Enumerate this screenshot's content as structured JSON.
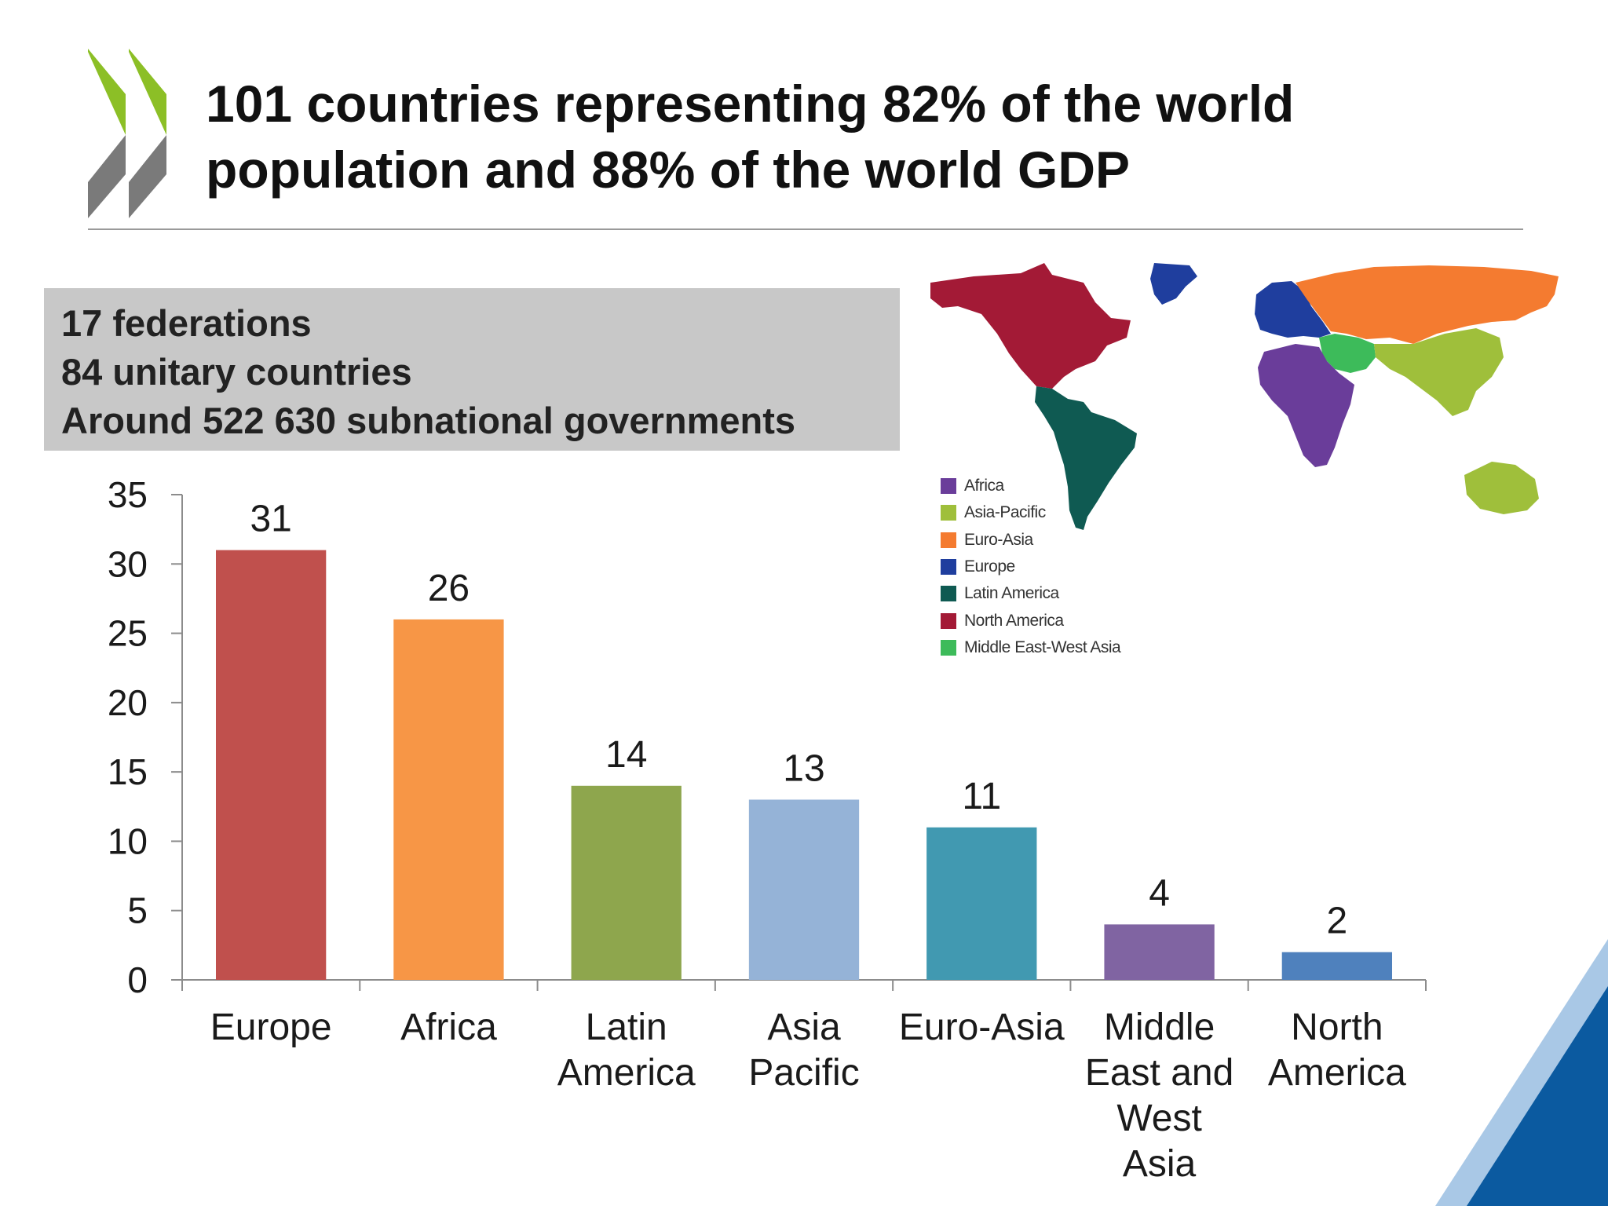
{
  "title": "101 countries representing 82% of the world population and 88% of the world GDP",
  "info_lines": [
    "17 federations",
    "84 unitary countries",
    "Around 522 630 subnational governments"
  ],
  "map": {
    "legend": [
      {
        "label": "Africa",
        "color": "#6a3d9a"
      },
      {
        "label": "Asia-Pacific",
        "color": "#9fbf3b"
      },
      {
        "label": "Euro-Asia",
        "color": "#f47b30"
      },
      {
        "label": "Europe",
        "color": "#1f3e9e"
      },
      {
        "label": "Latin America",
        "color": "#0f5a52"
      },
      {
        "label": "North America",
        "color": "#a31a36"
      },
      {
        "label": "Middle East-West Asia",
        "color": "#3dbb5a"
      }
    ]
  },
  "colors": {
    "logo_green": "#8cbf26",
    "logo_grey": "#7a7a7a",
    "accent_blue": "#0b5aa0"
  },
  "chart_data": {
    "type": "bar",
    "categories": [
      "Europe",
      "Africa",
      "Latin America",
      "Asia Pacific",
      "Euro-Asia",
      "Middle East and West Asia",
      "North America"
    ],
    "category_lines": [
      [
        "Europe"
      ],
      [
        "Africa"
      ],
      [
        "Latin",
        "America"
      ],
      [
        "Asia",
        "Pacific"
      ],
      [
        "Euro-Asia"
      ],
      [
        "Middle",
        "East and",
        "West",
        "Asia"
      ],
      [
        "North",
        "America"
      ]
    ],
    "values": [
      31,
      26,
      14,
      13,
      11,
      4,
      2
    ],
    "data_labels": [
      "31",
      "26",
      "14",
      "13",
      "11",
      "4",
      "2"
    ],
    "colors": [
      "#c0504d",
      "#f79646",
      "#8ea64d",
      "#95b3d7",
      "#4199b1",
      "#8064a2",
      "#4f81bd"
    ],
    "ylim": [
      0,
      35
    ],
    "yticks": [
      0,
      5,
      10,
      15,
      20,
      25,
      30,
      35
    ],
    "ytick_labels": [
      "0",
      "5",
      "10",
      "15",
      "20",
      "25",
      "30",
      "35"
    ],
    "grid": false,
    "legend": "none",
    "title": "",
    "xlabel": "",
    "ylabel": ""
  }
}
